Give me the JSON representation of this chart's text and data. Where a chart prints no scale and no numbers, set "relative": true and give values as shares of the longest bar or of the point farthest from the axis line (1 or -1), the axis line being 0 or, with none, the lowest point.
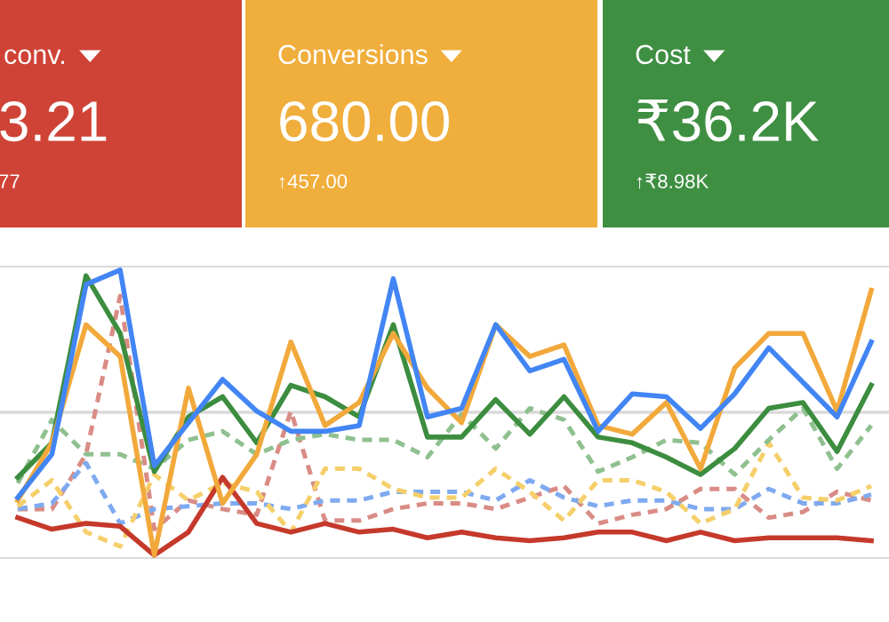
{
  "chart_data": [
    {
      "type": "other",
      "title": "conv.",
      "annotations": [
        "3.21",
        "77"
      ],
      "color": "#cf4336"
    },
    {
      "type": "other",
      "title": "Conversions",
      "annotations": [
        "680.00",
        "↑457.00"
      ],
      "color": "#f0ae3c"
    },
    {
      "type": "other",
      "title": "Cost",
      "annotations": [
        "₹36.2K",
        "↑₹8.98K"
      ],
      "color": "#3f8f42"
    },
    {
      "type": "line",
      "relative": true,
      "tick_labels": false,
      "ref_lines": [
        {
          "axis": "y",
          "value": 0.506,
          "color": "#dadada"
        }
      ],
      "categories": [
        null,
        null,
        null,
        null,
        null,
        null,
        null,
        null,
        null,
        null,
        null,
        null,
        null,
        null,
        null,
        null,
        null,
        null,
        null,
        null,
        null,
        null,
        null,
        null,
        null,
        null
      ],
      "series": [
        {
          "color": "#d98c85",
          "line_style": "dashed",
          "values": [
            0.17,
            0.17,
            0.36,
            0.91,
            0.1,
            0.2,
            0.17,
            0.15,
            0.51,
            0.13,
            0.13,
            0.17,
            0.19,
            0.19,
            0.17,
            0.21,
            0.25,
            0.12,
            0.15,
            0.17,
            0.24,
            0.24,
            0.14,
            0.16,
            0.23,
            0.2
          ]
        },
        {
          "color": "#7faaf0",
          "line_style": "dashed",
          "values": [
            0.17,
            0.19,
            0.33,
            0.12,
            0.17,
            0.18,
            0.19,
            0.19,
            0.17,
            0.2,
            0.2,
            0.23,
            0.23,
            0.23,
            0.2,
            0.27,
            0.21,
            0.18,
            0.2,
            0.2,
            0.17,
            0.17,
            0.24,
            0.19,
            0.19,
            0.22
          ]
        },
        {
          "color": "#f5cf6a",
          "line_style": "dashed",
          "values": [
            0.18,
            0.27,
            0.09,
            0.04,
            0.29,
            0.2,
            0.26,
            0.23,
            0.09,
            0.31,
            0.31,
            0.24,
            0.21,
            0.21,
            0.31,
            0.23,
            0.13,
            0.27,
            0.27,
            0.23,
            0.12,
            0.17,
            0.4,
            0.21,
            0.2,
            0.25
          ]
        },
        {
          "color": "#8fc08f",
          "line_style": "dashed",
          "values": [
            0.26,
            0.48,
            0.36,
            0.36,
            0.31,
            0.41,
            0.44,
            0.36,
            0.41,
            0.43,
            0.41,
            0.41,
            0.35,
            0.5,
            0.38,
            0.52,
            0.48,
            0.3,
            0.35,
            0.41,
            0.4,
            0.29,
            0.41,
            0.52,
            0.31,
            0.46
          ]
        },
        {
          "color": "#c5392b",
          "line_style": "solid",
          "values": [
            0.14,
            0.1,
            0.12,
            0.11,
            0.01,
            0.09,
            0.28,
            0.12,
            0.09,
            0.12,
            0.09,
            0.1,
            0.07,
            0.09,
            0.07,
            0.06,
            0.07,
            0.09,
            0.09,
            0.06,
            0.09,
            0.06,
            0.07,
            0.07,
            0.07,
            0.06
          ]
        },
        {
          "color": "#3c8d3f",
          "line_style": "solid",
          "values": [
            0.28,
            0.4,
            0.98,
            0.78,
            0.3,
            0.49,
            0.56,
            0.4,
            0.6,
            0.56,
            0.49,
            0.81,
            0.42,
            0.42,
            0.55,
            0.43,
            0.56,
            0.42,
            0.4,
            0.35,
            0.29,
            0.38,
            0.52,
            0.54,
            0.37,
            0.6
          ]
        },
        {
          "color": "#f2a93b",
          "line_style": "solid",
          "values": [
            0.2,
            0.4,
            0.81,
            0.7,
            0.01,
            0.59,
            0.19,
            0.36,
            0.75,
            0.46,
            0.54,
            0.78,
            0.59,
            0.47,
            0.81,
            0.7,
            0.74,
            0.46,
            0.43,
            0.54,
            0.31,
            0.66,
            0.78,
            0.78,
            0.51,
            0.93
          ]
        },
        {
          "color": "#4285f4",
          "line_style": "solid",
          "values": [
            0.21,
            0.36,
            0.95,
            1.0,
            0.32,
            0.47,
            0.62,
            0.51,
            0.44,
            0.44,
            0.46,
            0.97,
            0.49,
            0.52,
            0.81,
            0.65,
            0.69,
            0.44,
            0.57,
            0.56,
            0.45,
            0.57,
            0.73,
            0.61,
            0.49,
            0.75
          ]
        }
      ]
    }
  ]
}
